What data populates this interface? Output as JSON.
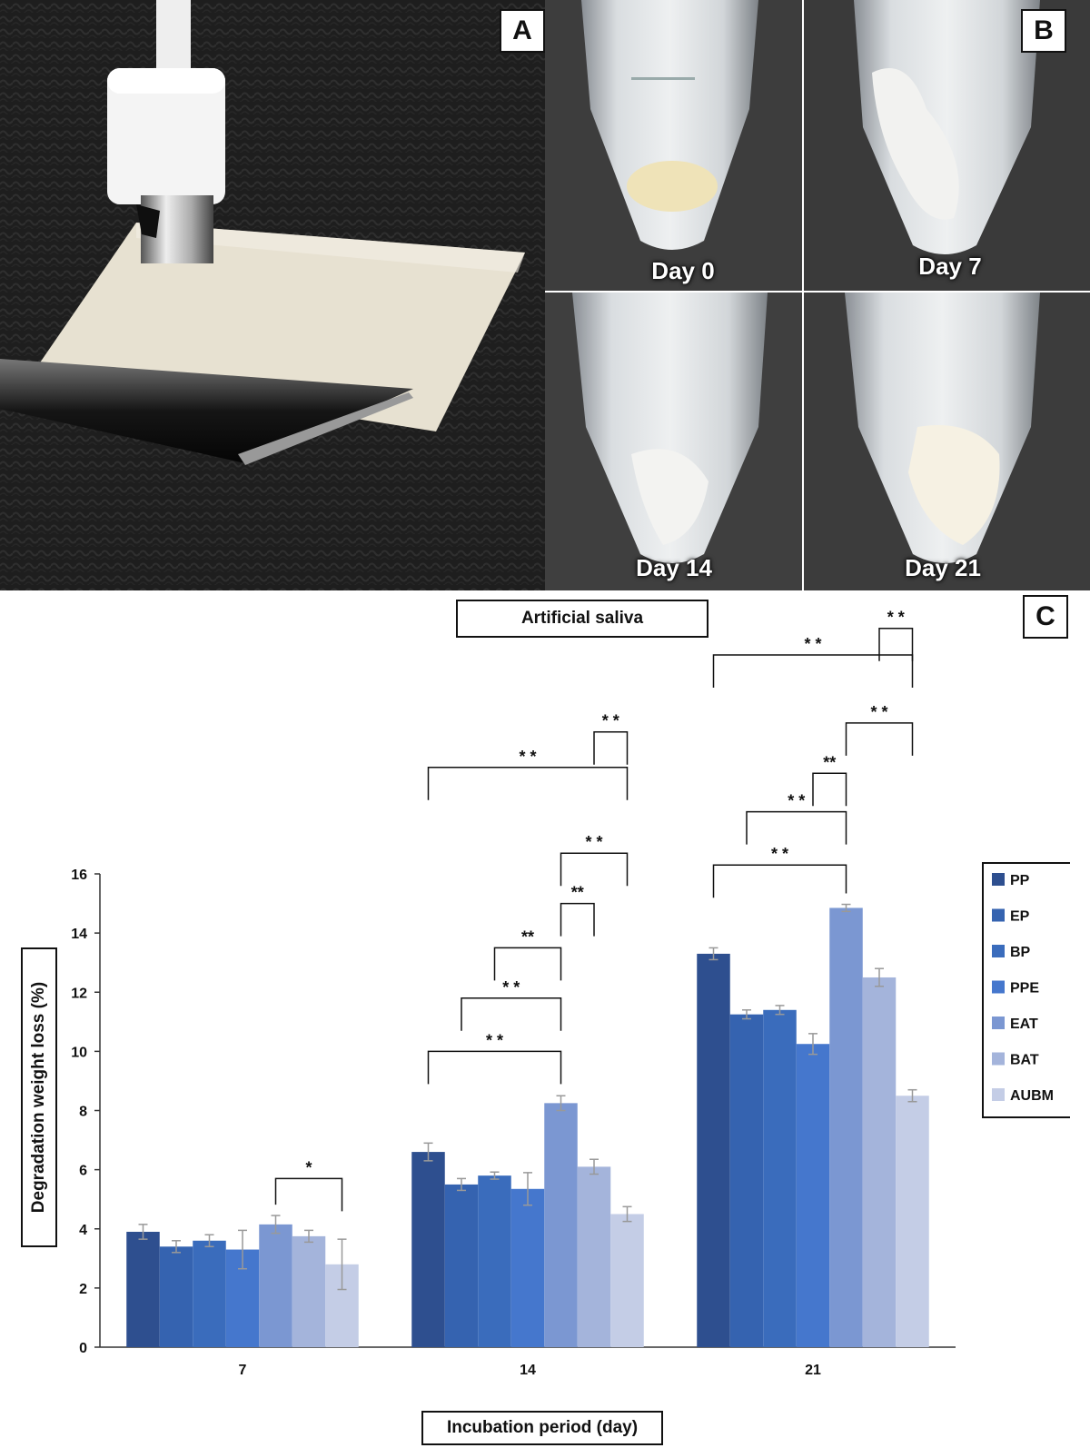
{
  "panels": {
    "a_label": "A",
    "b_label": "B",
    "c_label": "C"
  },
  "panel_b": {
    "day_labels": [
      "Day 0",
      "Day 7",
      "Day 14",
      "Day 21"
    ]
  },
  "colors": {
    "series": [
      "#2e4f8f",
      "#3563b0",
      "#3a6cbc",
      "#4577cd",
      "#7b97d2",
      "#a4b4db",
      "#c4cde6"
    ],
    "error_bar": "#999999",
    "bracket": "#111111"
  },
  "chart_data": {
    "type": "bar",
    "title": "Artificial saliva",
    "xlabel": "Incubation period (day)",
    "ylabel": "Degradation weight loss (%)",
    "ylim": [
      0,
      16
    ],
    "yticks": [
      0,
      2,
      4,
      6,
      8,
      10,
      12,
      14,
      16
    ],
    "grid": false,
    "legend_position": "right",
    "categories": [
      "7",
      "14",
      "21"
    ],
    "series": [
      {
        "name": "PP",
        "values": [
          3.9,
          6.6,
          13.3
        ],
        "errors": [
          0.25,
          0.3,
          0.2
        ]
      },
      {
        "name": "EP",
        "values": [
          3.4,
          5.5,
          11.25
        ],
        "errors": [
          0.2,
          0.2,
          0.15
        ]
      },
      {
        "name": "BP",
        "values": [
          3.6,
          5.8,
          11.4
        ],
        "errors": [
          0.2,
          0.12,
          0.15
        ]
      },
      {
        "name": "PPE",
        "values": [
          3.3,
          5.35,
          10.25
        ],
        "errors": [
          0.65,
          0.55,
          0.35
        ]
      },
      {
        "name": "EAT",
        "values": [
          4.15,
          8.25,
          14.85
        ],
        "errors": [
          0.3,
          0.25,
          0.12
        ]
      },
      {
        "name": "BAT",
        "values": [
          3.75,
          6.1,
          12.5
        ],
        "errors": [
          0.2,
          0.25,
          0.3
        ]
      },
      {
        "name": "AUBM",
        "values": [
          2.8,
          4.5,
          8.5
        ],
        "errors": [
          0.85,
          0.25,
          0.2
        ]
      }
    ],
    "significance": [
      {
        "group": 0,
        "from": 4,
        "to": 6,
        "y": 5.7,
        "label": "*"
      },
      {
        "group": 1,
        "from": 0,
        "to": 4,
        "y": 10.0,
        "label": "* *"
      },
      {
        "group": 1,
        "from": 1,
        "to": 4,
        "y": 11.8,
        "label": "* *"
      },
      {
        "group": 1,
        "from": 2,
        "to": 4,
        "y": 13.5,
        "label": "**"
      },
      {
        "group": 1,
        "from": 4,
        "to": 5,
        "y": 15.0,
        "label": "**"
      },
      {
        "group": 1,
        "from": 4,
        "to": 6,
        "y": 16.7,
        "label": "* *"
      },
      {
        "group": 1,
        "from": 0,
        "to": 6,
        "y": 19.6,
        "label": "* *"
      },
      {
        "group": 1,
        "from": 5,
        "to": 6,
        "y": 20.8,
        "label": "* *"
      },
      {
        "group": 2,
        "from": 0,
        "to": 4,
        "y": 16.3,
        "label": "* *"
      },
      {
        "group": 2,
        "from": 1,
        "to": 4,
        "y": 18.1,
        "label": "* *"
      },
      {
        "group": 2,
        "from": 3,
        "to": 4,
        "y": 19.4,
        "label": "**"
      },
      {
        "group": 2,
        "from": 4,
        "to": 6,
        "y": 21.1,
        "label": "* *"
      },
      {
        "group": 2,
        "from": 0,
        "to": 6,
        "y": 23.4,
        "label": "* *"
      },
      {
        "group": 2,
        "from": 5,
        "to": 6,
        "y": 24.3,
        "label": "* *"
      }
    ]
  }
}
